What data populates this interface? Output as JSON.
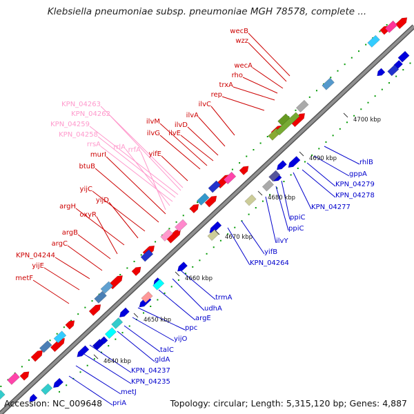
{
  "title": "Klebsiella pneumoniae subsp. pneumoniae MGH 78578, complete ...",
  "footer": {
    "accession": "Accession: NC_009648",
    "stats": "Topology: circular; Length: 5,315,120 bp; Genes: 4,887"
  },
  "colors": {
    "forward_label": "#cc0000",
    "reverse_label": "#0000cc",
    "rna_label": "#ff99cc",
    "backbone": "#909090",
    "tick_dots": "#009900"
  },
  "kbp_ticks": [
    "4640 kbp",
    "4650 kbp",
    "4660 kbp",
    "4670 kbp",
    "4680 kbp",
    "4690 kbp",
    "4700 kbp"
  ],
  "labels_forward": [
    "wecB",
    "wzz",
    "wecA",
    "rho",
    "trxA",
    "rep",
    "ilvC",
    "ilvA",
    "ilvD",
    "ilvM",
    "ilvE",
    "ilvG",
    "yifE",
    "murI",
    "btuB",
    "yijC",
    "yijD",
    "argH",
    "oxyR",
    "argB",
    "argC",
    "KPN_04244",
    "yijE",
    "metF"
  ],
  "labels_rna": [
    "KPN_04263",
    "KPN_04262",
    "KPN_04259",
    "KPN_04258",
    "rrsA",
    "rrlA",
    "rrfA"
  ],
  "labels_reverse": [
    "rhlB",
    "gppA",
    "KPN_04279",
    "KPN_04278",
    "KPN_04277",
    "ppiC",
    "ppiC",
    "ilvY",
    "yifB",
    "KPN_04264",
    "trmA",
    "udhA",
    "argE",
    "ppc",
    "yijO",
    "talC",
    "gldA",
    "KPN_04237",
    "KPN_04235",
    "metJ",
    "priA"
  ]
}
